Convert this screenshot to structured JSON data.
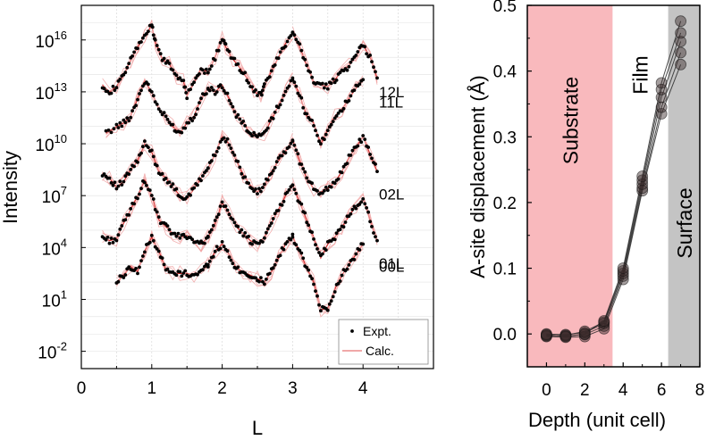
{
  "chart_data": [
    {
      "type": "line",
      "xlabel": "L",
      "ylabel": "Intensity",
      "xlim": [
        0,
        5
      ],
      "ylog": true,
      "ylim_exp": [
        -3,
        18
      ],
      "x_ticks": [
        "0",
        "1",
        "2",
        "3",
        "4"
      ],
      "y_ticks": [
        {
          "exp": -2,
          "base": "10",
          "sup": "-2"
        },
        {
          "exp": 1,
          "base": "10",
          "sup": "1"
        },
        {
          "exp": 4,
          "base": "10",
          "sup": "4"
        },
        {
          "exp": 7,
          "base": "10",
          "sup": "7"
        },
        {
          "exp": 10,
          "base": "10",
          "sup": "10"
        },
        {
          "exp": 13,
          "base": "10",
          "sup": "13"
        },
        {
          "exp": 16,
          "base": "10",
          "sup": "16"
        }
      ],
      "grid": true,
      "legend": {
        "position": "bottom-right",
        "entries": [
          {
            "label": "Expt.",
            "marker": "dot",
            "color": "#000000"
          },
          {
            "label": "Calc.",
            "marker": "line",
            "color": "#e05050"
          }
        ]
      },
      "rods": [
        {
          "label": "12L",
          "segments": [
            {
              "x": [
                0.3,
                0.4,
                0.5,
                0.6,
                0.7,
                0.8,
                0.9,
                1.0,
                1.05,
                1.15,
                1.25,
                1.35,
                1.45,
                1.5,
                1.6,
                1.7,
                1.8
              ],
              "y": [
                13.4,
                13.0,
                13.3,
                14.0,
                14.8,
                15.6,
                16.3,
                16.8,
                15.9,
                14.9,
                14.6,
                13.9,
                13.6,
                12.8,
                13.5,
                14.4,
                14.1
              ]
            },
            {
              "x": [
                1.8,
                1.9,
                2.0,
                2.05,
                2.15,
                2.25,
                2.35,
                2.45,
                2.55,
                2.6,
                2.7,
                2.8,
                2.9,
                3.0
              ],
              "y": [
                14.1,
                15.0,
                16.1,
                15.6,
                14.9,
                14.4,
                13.8,
                13.0,
                12.8,
                13.3,
                14.2,
                15.0,
                15.8,
                16.4
              ]
            },
            {
              "x": [
                3.0,
                3.1,
                3.2,
                3.3,
                3.4,
                3.5,
                3.6,
                3.7,
                3.8,
                3.9,
                4.0,
                4.1,
                4.2
              ],
              "y": [
                16.4,
                15.6,
                14.5,
                13.6,
                13.4,
                13.3,
                13.7,
                14.2,
                14.5,
                15.1,
                15.7,
                15.0,
                13.8
              ]
            }
          ]
        },
        {
          "label": "11L",
          "segments": [
            {
              "x": [
                0.35,
                0.5,
                0.6,
                0.7,
                0.8,
                0.9,
                1.0,
                1.1,
                1.2,
                1.3,
                1.4,
                1.5,
                1.6,
                1.7,
                1.8
              ],
              "y": [
                10.6,
                11.0,
                11.2,
                11.6,
                12.6,
                13.6,
                13.0,
                12.0,
                11.5,
                11.0,
                10.6,
                11.2,
                11.6,
                12.6,
                13.2
              ]
            },
            {
              "x": [
                1.8,
                1.9,
                2.0,
                2.1,
                2.2,
                2.3,
                2.4,
                2.5,
                2.6,
                2.7,
                2.8,
                2.9,
                3.0
              ],
              "y": [
                13.2,
                13.0,
                13.4,
                12.6,
                11.6,
                11.2,
                10.6,
                10.4,
                10.6,
                11.4,
                12.2,
                13.0,
                13.8
              ]
            },
            {
              "x": [
                3.0,
                3.1,
                3.2,
                3.3,
                3.4,
                3.5,
                3.6,
                3.7,
                3.8,
                3.9,
                4.0
              ],
              "y": [
                13.8,
                12.8,
                11.6,
                11.2,
                10.0,
                10.8,
                11.6,
                12.0,
                12.6,
                13.2,
                13.7
              ]
            }
          ]
        },
        {
          "label": "02L",
          "segments": [
            {
              "x": [
                0.3,
                0.4,
                0.5,
                0.6,
                0.7,
                0.8,
                0.9,
                1.0,
                1.1,
                1.2,
                1.3,
                1.4,
                1.5,
                1.6,
                1.7,
                1.8
              ],
              "y": [
                8.3,
                8.0,
                7.5,
                7.8,
                8.5,
                9.0,
                10.0,
                9.5,
                8.4,
                8.0,
                7.5,
                7.0,
                6.8,
                7.4,
                8.0,
                8.6
              ]
            },
            {
              "x": [
                1.8,
                1.9,
                2.0,
                2.1,
                2.2,
                2.3,
                2.4,
                2.5,
                2.6,
                2.7,
                2.8,
                2.9,
                3.0
              ],
              "y": [
                8.6,
                9.4,
                10.4,
                10.0,
                9.0,
                8.2,
                7.6,
                7.2,
                7.6,
                8.4,
                9.0,
                9.6,
                10.2
              ]
            },
            {
              "x": [
                3.0,
                3.1,
                3.2,
                3.3,
                3.4,
                3.5,
                3.6,
                3.7,
                3.8,
                3.9,
                4.0,
                4.1,
                4.2
              ],
              "y": [
                10.2,
                9.0,
                8.0,
                7.4,
                7.2,
                7.4,
                7.8,
                8.4,
                9.2,
                9.8,
                10.4,
                9.4,
                8.4
              ]
            }
          ]
        },
        {
          "label": "01L",
          "segments": [
            {
              "x": [
                0.3,
                0.4,
                0.5,
                0.6,
                0.7,
                0.8,
                0.9,
                1.0,
                1.1,
                1.2,
                1.3,
                1.4,
                1.5,
                1.6,
                1.7,
                1.8
              ],
              "y": [
                4.6,
                4.4,
                4.5,
                5.4,
                6.2,
                7.0,
                7.9,
                7.0,
                5.6,
                5.2,
                4.8,
                4.6,
                4.7,
                4.4,
                4.2,
                4.6
              ]
            },
            {
              "x": [
                1.8,
                1.9,
                2.0,
                2.1,
                2.2,
                2.3,
                2.4,
                2.5,
                2.6,
                2.7,
                2.8,
                2.9,
                3.0
              ],
              "y": [
                4.6,
                5.4,
                6.6,
                6.0,
                5.2,
                4.8,
                4.4,
                4.2,
                4.6,
                5.4,
                6.2,
                7.0,
                7.6
              ]
            },
            {
              "x": [
                3.0,
                3.1,
                3.2,
                3.3,
                3.4,
                3.5,
                3.6,
                3.7,
                3.8,
                3.9,
                4.0,
                4.1,
                4.2
              ],
              "y": [
                7.6,
                6.6,
                5.6,
                4.6,
                3.4,
                4.2,
                4.6,
                5.2,
                5.8,
                6.4,
                6.8,
                5.6,
                4.4
              ]
            }
          ]
        },
        {
          "label": "00L",
          "segments": [
            {
              "x": [
                0.5,
                0.6,
                0.7,
                0.8,
                0.9,
                1.0,
                1.1,
                1.2,
                1.3,
                1.4,
                1.5,
                1.6,
                1.7,
                1.8
              ],
              "y": [
                2.0,
                2.4,
                2.9,
                2.6,
                3.8,
                4.6,
                3.8,
                2.7,
                2.5,
                2.5,
                2.5,
                2.4,
                2.6,
                3.0
              ]
            },
            {
              "x": [
                1.8,
                1.9,
                2.0,
                2.1,
                2.2,
                2.3,
                2.4,
                2.5,
                2.6,
                2.7,
                2.8,
                2.9,
                3.0
              ],
              "y": [
                3.0,
                3.8,
                4.2,
                3.6,
                2.8,
                2.6,
                2.4,
                2.2,
                2.0,
                2.6,
                3.4,
                4.2,
                4.6
              ]
            },
            {
              "x": [
                3.0,
                3.1,
                3.2,
                3.3,
                3.4,
                3.5,
                3.6,
                3.7,
                3.8,
                3.9,
                4.0
              ],
              "y": [
                4.6,
                3.8,
                2.8,
                2.0,
                0.4,
                0.5,
                1.6,
                2.4,
                3.0,
                3.6,
                4.2
              ]
            }
          ]
        }
      ]
    },
    {
      "type": "scatter",
      "xlabel": "Depth (unit cell)",
      "ylabel": "A-site displacement (Å)",
      "xlim": [
        -1,
        8
      ],
      "ylim": [
        -0.05,
        0.5
      ],
      "x_ticks": [
        0,
        2,
        4,
        6,
        8
      ],
      "y_ticks": [
        "0.0",
        "0.1",
        "0.2",
        "0.3",
        "0.4",
        "0.5"
      ],
      "regions": [
        {
          "label": "Substrate",
          "x_range": [
            -1,
            3.45
          ],
          "color": "#f9b9bd",
          "text_orientation": "vertical"
        },
        {
          "label": "Film",
          "x_range": [
            3.45,
            6.35
          ],
          "color": "#ffffff",
          "text_orientation": "vertical"
        },
        {
          "label": "Surface",
          "x_range": [
            6.35,
            8
          ],
          "color": "#c4c4c4",
          "text_orientation": "vertical"
        }
      ],
      "x": [
        0,
        1,
        2,
        3,
        4,
        5,
        6,
        7
      ],
      "series": [
        {
          "values": [
            -0.004,
            -0.005,
            -0.004,
            0.008,
            0.083,
            0.218,
            0.335,
            0.41
          ]
        },
        {
          "values": [
            -0.002,
            -0.003,
            -0.001,
            0.012,
            0.088,
            0.222,
            0.345,
            0.428
          ]
        },
        {
          "values": [
            0.0,
            -0.001,
            0.002,
            0.016,
            0.092,
            0.228,
            0.36,
            0.445
          ]
        },
        {
          "values": [
            -0.003,
            -0.002,
            0.004,
            0.018,
            0.096,
            0.234,
            0.372,
            0.458
          ]
        },
        {
          "values": [
            -0.001,
            -0.004,
            0.0,
            0.02,
            0.1,
            0.24,
            0.382,
            0.476
          ]
        }
      ]
    }
  ]
}
